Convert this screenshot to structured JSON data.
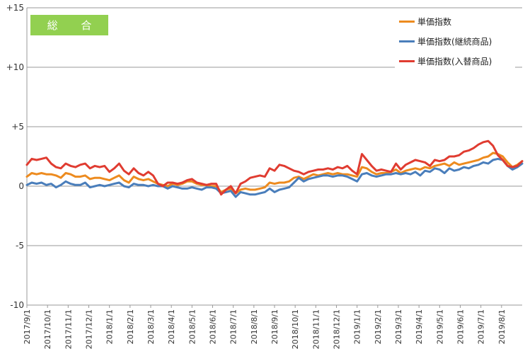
{
  "badge": {
    "label": "総 合",
    "color": "#92d050"
  },
  "chart_data": {
    "type": "line",
    "ylim": [
      -10,
      15
    ],
    "yticks": [
      15,
      10,
      5,
      0,
      -5,
      -10
    ],
    "ytick_labels": [
      "+15",
      "+10",
      "+5",
      "0",
      "-5",
      "-10"
    ],
    "x_labels": [
      "2017/9/1",
      "2017/10/1",
      "2017/11/1",
      "2017/12/1",
      "2018/1/1",
      "2018/2/1",
      "2018/3/1",
      "2018/4/1",
      "2018/5/1",
      "2018/6/1",
      "2018/7/1",
      "2018/8/1",
      "2018/9/1",
      "2018/10/1",
      "2018/11/1",
      "2018/12/1",
      "2019/1/1",
      "2019/2/1",
      "2019/3/1",
      "2019/4/1",
      "2019/5/1",
      "2019/6/1",
      "2019/7/1",
      "2019/8/1"
    ],
    "grid": true,
    "legend_position": "top-right",
    "series": [
      {
        "name": "単価指数",
        "color": "#ed8b1f",
        "values": [
          0.8,
          1.1,
          1.0,
          1.1,
          1.0,
          1.0,
          0.9,
          0.7,
          1.1,
          1.0,
          0.8,
          0.8,
          0.9,
          0.6,
          0.7,
          0.7,
          0.6,
          0.5,
          0.7,
          0.9,
          0.5,
          0.3,
          0.8,
          0.6,
          0.5,
          0.6,
          0.4,
          0.2,
          0.1,
          0.0,
          0.2,
          0.1,
          0.2,
          0.4,
          0.4,
          0.2,
          0.1,
          0.1,
          0.0,
          0.0,
          -0.5,
          -0.3,
          -0.2,
          -0.6,
          -0.3,
          -0.2,
          -0.3,
          -0.3,
          -0.2,
          -0.1,
          0.3,
          0.2,
          0.3,
          0.3,
          0.4,
          0.7,
          0.8,
          0.6,
          0.8,
          1.0,
          0.9,
          1.0,
          1.1,
          1.0,
          1.1,
          1.0,
          1.0,
          0.9,
          0.8,
          1.6,
          1.5,
          1.2,
          1.0,
          1.1,
          1.1,
          1.2,
          1.4,
          1.1,
          1.3,
          1.4,
          1.5,
          1.4,
          1.6,
          1.5,
          1.7,
          1.8,
          1.9,
          1.7,
          2.0,
          1.8,
          1.9,
          2.0,
          2.1,
          2.2,
          2.4,
          2.5,
          2.8,
          2.7,
          2.5,
          2.0,
          1.6,
          1.8,
          2.1
        ]
      },
      {
        "name": "単価指数(継続商品)",
        "color": "#4a7ebb",
        "values": [
          0.1,
          0.3,
          0.2,
          0.3,
          0.1,
          0.2,
          -0.1,
          0.1,
          0.4,
          0.2,
          0.1,
          0.1,
          0.3,
          -0.1,
          0.0,
          0.1,
          0.0,
          0.1,
          0.2,
          0.3,
          0.0,
          -0.1,
          0.2,
          0.1,
          0.1,
          0.0,
          0.1,
          0.0,
          0.0,
          -0.2,
          0.0,
          -0.1,
          -0.2,
          -0.2,
          -0.1,
          -0.2,
          -0.3,
          -0.1,
          -0.1,
          -0.2,
          -0.6,
          -0.5,
          -0.4,
          -0.9,
          -0.5,
          -0.6,
          -0.7,
          -0.7,
          -0.6,
          -0.5,
          -0.2,
          -0.5,
          -0.3,
          -0.2,
          -0.1,
          0.3,
          0.7,
          0.4,
          0.6,
          0.7,
          0.8,
          0.9,
          0.9,
          0.8,
          0.9,
          0.9,
          0.8,
          0.6,
          0.4,
          1.0,
          1.1,
          0.9,
          0.8,
          0.9,
          1.0,
          1.0,
          1.1,
          1.0,
          1.1,
          1.0,
          1.2,
          0.9,
          1.3,
          1.2,
          1.5,
          1.4,
          1.1,
          1.5,
          1.3,
          1.4,
          1.6,
          1.5,
          1.7,
          1.8,
          2.0,
          1.9,
          2.2,
          2.3,
          2.2,
          1.7,
          1.4,
          1.6,
          1.9
        ]
      },
      {
        "name": "単価指数(入替商品)",
        "color": "#e03c31",
        "values": [
          1.8,
          2.3,
          2.2,
          2.3,
          2.4,
          1.9,
          1.6,
          1.5,
          1.9,
          1.7,
          1.6,
          1.8,
          1.9,
          1.5,
          1.7,
          1.6,
          1.7,
          1.2,
          1.5,
          1.9,
          1.3,
          1.0,
          1.5,
          1.1,
          0.9,
          1.2,
          0.9,
          0.2,
          0.0,
          0.3,
          0.3,
          0.2,
          0.3,
          0.5,
          0.6,
          0.3,
          0.2,
          0.1,
          0.2,
          0.2,
          -0.7,
          -0.3,
          0.0,
          -0.6,
          0.2,
          0.4,
          0.7,
          0.8,
          0.9,
          0.8,
          1.5,
          1.3,
          1.8,
          1.7,
          1.5,
          1.3,
          1.2,
          1.0,
          1.2,
          1.3,
          1.4,
          1.4,
          1.5,
          1.4,
          1.6,
          1.5,
          1.7,
          1.3,
          1.0,
          2.7,
          2.2,
          1.7,
          1.3,
          1.4,
          1.3,
          1.2,
          1.9,
          1.4,
          1.8,
          2.0,
          2.2,
          2.1,
          2.0,
          1.7,
          2.2,
          2.1,
          2.2,
          2.5,
          2.5,
          2.6,
          2.9,
          3.0,
          3.2,
          3.5,
          3.7,
          3.8,
          3.4,
          2.6,
          2.2,
          1.7,
          1.6,
          1.7,
          2.1
        ]
      }
    ]
  }
}
